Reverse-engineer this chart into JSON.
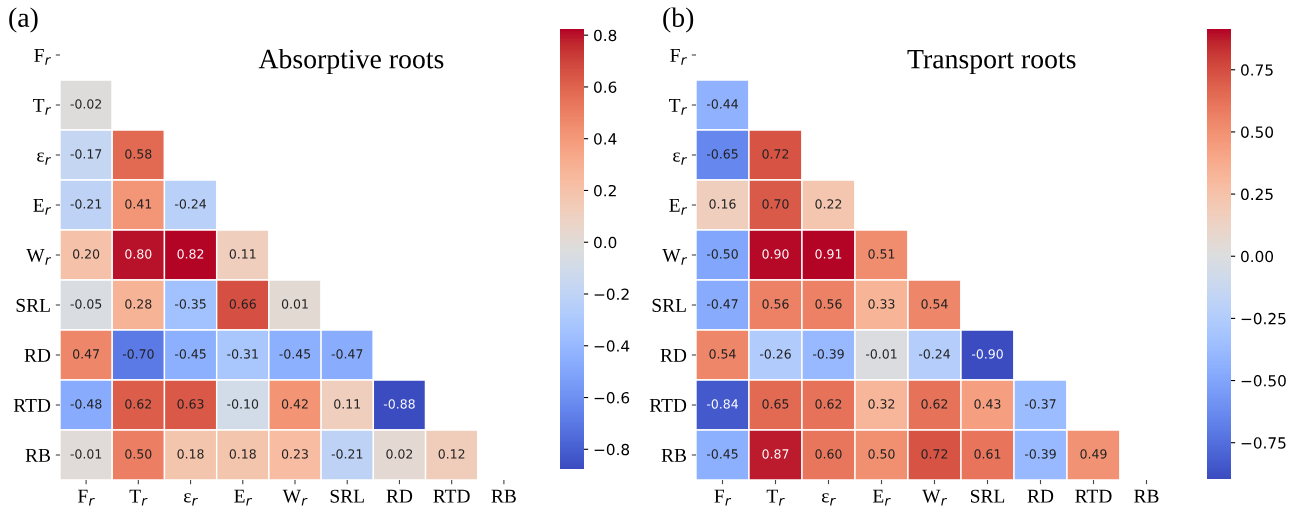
{
  "chart_data": [
    {
      "type": "heatmap",
      "title": "Absorptive roots",
      "annotations": [
        "(a)"
      ],
      "categories": [
        "F$_{r}$",
        "T$_{r}$",
        "ε$_{r}$",
        "E$_{r}$",
        "W$_{r}$",
        "SRL",
        "RD",
        "RTD",
        "RB"
      ],
      "y_categories": [
        "F$_{r}$",
        "T$_{r}$",
        "ε$_{r}$",
        "E$_{r}$",
        "W$_{r}$",
        "SRL",
        "RD",
        "RTD",
        "RB"
      ],
      "cells": [
        [
          null,
          null,
          null,
          null,
          null,
          null,
          null,
          null,
          null
        ],
        [
          -0.02,
          null,
          null,
          null,
          null,
          null,
          null,
          null,
          null
        ],
        [
          -0.17,
          0.58,
          null,
          null,
          null,
          null,
          null,
          null,
          null
        ],
        [
          -0.21,
          0.41,
          -0.24,
          null,
          null,
          null,
          null,
          null,
          null
        ],
        [
          0.2,
          0.8,
          0.82,
          0.11,
          null,
          null,
          null,
          null,
          null
        ],
        [
          -0.05,
          0.28,
          -0.35,
          0.66,
          0.01,
          null,
          null,
          null,
          null
        ],
        [
          0.47,
          -0.7,
          -0.45,
          -0.31,
          -0.45,
          -0.47,
          null,
          null,
          null
        ],
        [
          -0.48,
          0.62,
          0.63,
          -0.1,
          0.42,
          0.11,
          -0.88,
          null,
          null
        ],
        [
          -0.01,
          0.5,
          0.18,
          0.18,
          0.23,
          -0.21,
          0.02,
          0.12,
          null
        ]
      ],
      "cell_labels": [
        [
          null,
          null,
          null,
          null,
          null,
          null,
          null,
          null,
          null
        ],
        [
          "-0.02",
          null,
          null,
          null,
          null,
          null,
          null,
          null,
          null
        ],
        [
          "-0.17",
          "0.58",
          null,
          null,
          null,
          null,
          null,
          null,
          null
        ],
        [
          "-0.21",
          "0.41",
          "-0.24",
          null,
          null,
          null,
          null,
          null,
          null
        ],
        [
          "0.20",
          "0.80",
          "0.82",
          "0.11",
          null,
          null,
          null,
          null,
          null
        ],
        [
          "-0.05",
          "0.28",
          "-0.35",
          "0.66",
          "0.01",
          null,
          null,
          null,
          null
        ],
        [
          "0.47",
          "-0.70",
          "-0.45",
          "-0.31",
          "-0.45",
          "-0.47",
          null,
          null,
          null
        ],
        [
          "-0.48",
          "0.62",
          "0.63",
          "-0.10",
          "0.42",
          "0.11",
          "-0.88",
          null,
          null
        ],
        [
          "-0.01",
          "0.50",
          "0.18",
          "0.18",
          "0.23",
          "-0.21",
          "0.02",
          "0.12",
          null
        ]
      ],
      "clim": [
        -0.88,
        0.82
      ],
      "cticks": [
        {
          "value": -0.8,
          "label": "−0.8"
        },
        {
          "value": -0.6,
          "label": "−0.6"
        },
        {
          "value": -0.4,
          "label": "−0.4"
        },
        {
          "value": -0.2,
          "label": "−0.2"
        },
        {
          "value": 0.0,
          "label": "0.0"
        },
        {
          "value": 0.2,
          "label": "0.2"
        },
        {
          "value": 0.4,
          "label": "0.4"
        },
        {
          "value": 0.6,
          "label": "0.6"
        },
        {
          "value": 0.8,
          "label": "0.8"
        }
      ]
    },
    {
      "type": "heatmap",
      "title": "Transport roots",
      "annotations": [
        "(b)"
      ],
      "categories": [
        "F$_{r}$",
        "T$_{r}$",
        "ε$_{r}$",
        "E$_{r}$",
        "W$_{r}$",
        "SRL",
        "RD",
        "RTD",
        "RB"
      ],
      "y_categories": [
        "F$_{r}$",
        "T$_{r}$",
        "ε$_{r}$",
        "E$_{r}$",
        "W$_{r}$",
        "SRL",
        "RD",
        "RTD",
        "RB"
      ],
      "cells": [
        [
          null,
          null,
          null,
          null,
          null,
          null,
          null,
          null,
          null
        ],
        [
          -0.44,
          null,
          null,
          null,
          null,
          null,
          null,
          null,
          null
        ],
        [
          -0.65,
          0.72,
          null,
          null,
          null,
          null,
          null,
          null,
          null
        ],
        [
          0.16,
          0.7,
          0.22,
          null,
          null,
          null,
          null,
          null,
          null
        ],
        [
          -0.5,
          0.9,
          0.91,
          0.51,
          null,
          null,
          null,
          null,
          null
        ],
        [
          -0.47,
          0.56,
          0.56,
          0.33,
          0.54,
          null,
          null,
          null,
          null
        ],
        [
          0.54,
          -0.26,
          -0.39,
          -0.01,
          -0.24,
          -0.9,
          null,
          null,
          null
        ],
        [
          -0.84,
          0.65,
          0.62,
          0.32,
          0.62,
          0.43,
          -0.37,
          null,
          null
        ],
        [
          -0.45,
          0.87,
          0.6,
          0.5,
          0.72,
          0.61,
          -0.39,
          0.49,
          null
        ]
      ],
      "cell_labels": [
        [
          null,
          null,
          null,
          null,
          null,
          null,
          null,
          null,
          null
        ],
        [
          "-0.44",
          null,
          null,
          null,
          null,
          null,
          null,
          null,
          null
        ],
        [
          "-0.65",
          "0.72",
          null,
          null,
          null,
          null,
          null,
          null,
          null
        ],
        [
          "0.16",
          "0.70",
          "0.22",
          null,
          null,
          null,
          null,
          null,
          null
        ],
        [
          "-0.50",
          "0.90",
          "0.91",
          "0.51",
          null,
          null,
          null,
          null,
          null
        ],
        [
          "-0.47",
          "0.56",
          "0.56",
          "0.33",
          "0.54",
          null,
          null,
          null,
          null
        ],
        [
          "0.54",
          "-0.26",
          "-0.39",
          "-0.01",
          "-0.24",
          "-0.90",
          null,
          null,
          null
        ],
        [
          "-0.84",
          "0.65",
          "0.62",
          "0.32",
          "0.62",
          "0.43",
          "-0.37",
          null,
          null
        ],
        [
          "-0.45",
          "0.87",
          "0.60",
          "0.50",
          "0.72",
          "0.61",
          "-0.39",
          "0.49",
          null
        ]
      ],
      "clim": [
        -0.9,
        0.91
      ],
      "cticks": [
        {
          "value": -0.75,
          "label": "−0.75"
        },
        {
          "value": -0.5,
          "label": "−0.50"
        },
        {
          "value": -0.25,
          "label": "−0.25"
        },
        {
          "value": 0.0,
          "label": "0.00"
        },
        {
          "value": 0.25,
          "label": "0.25"
        },
        {
          "value": 0.5,
          "label": "0.50"
        },
        {
          "value": 0.75,
          "label": "0.75"
        }
      ]
    }
  ]
}
